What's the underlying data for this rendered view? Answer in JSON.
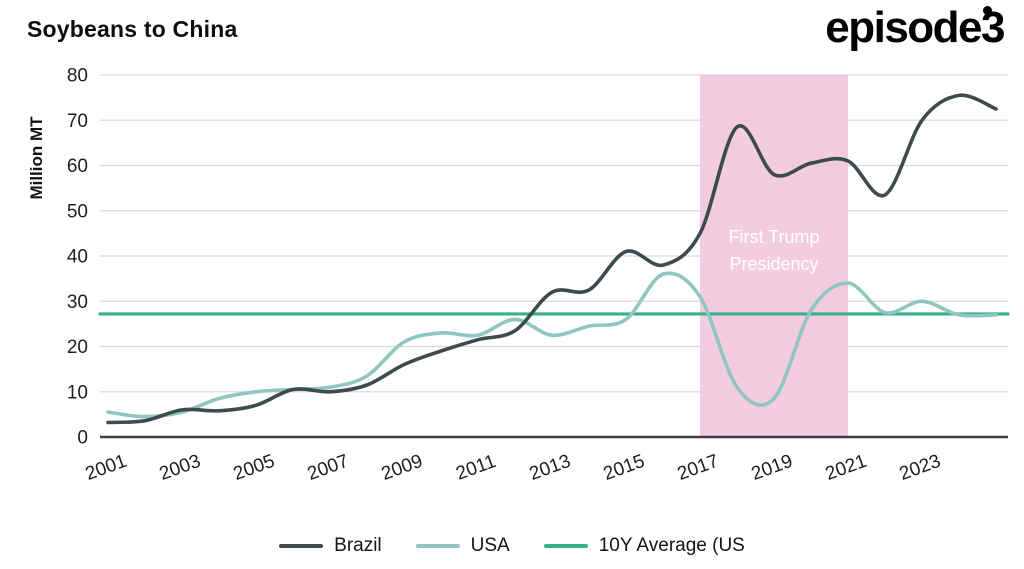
{
  "header": {
    "title": "Soybeans to China",
    "logo_text": "episode3"
  },
  "chart_data": {
    "type": "line",
    "title": "Soybeans to China",
    "xlabel": "",
    "ylabel": "Million MT",
    "ylim": [
      0,
      80
    ],
    "yticks": [
      0,
      10,
      20,
      30,
      40,
      50,
      60,
      70,
      80
    ],
    "xticks": [
      2001,
      2003,
      2005,
      2007,
      2009,
      2011,
      2013,
      2015,
      2017,
      2019,
      2021,
      2023
    ],
    "x": [
      2001,
      2002,
      2003,
      2004,
      2005,
      2006,
      2007,
      2008,
      2009,
      2010,
      2011,
      2012,
      2013,
      2014,
      2015,
      2016,
      2017,
      2018,
      2019,
      2020,
      2021,
      2022,
      2023,
      2024,
      2025
    ],
    "series": [
      {
        "name": "Brazil",
        "color": "#3d4b4d",
        "values": [
          3.2,
          3.6,
          6.0,
          5.8,
          7.0,
          10.5,
          10.0,
          11.5,
          16.0,
          19.0,
          21.5,
          23.5,
          32.0,
          32.5,
          41.0,
          38.0,
          45.0,
          68.5,
          58.0,
          60.5,
          61.0,
          53.5,
          70.0,
          75.5,
          72.5
        ]
      },
      {
        "name": "USA",
        "color": "#90c6c0",
        "values": [
          5.5,
          4.5,
          5.5,
          8.5,
          10.0,
          10.5,
          11.0,
          13.5,
          21.0,
          23.0,
          22.5,
          26.0,
          22.5,
          24.5,
          26.0,
          36.0,
          31.0,
          11.0,
          8.5,
          28.0,
          34.0,
          27.5,
          30.0,
          27.0,
          27.0
        ]
      },
      {
        "name": "10Y Average (US",
        "color": "#36b189",
        "constant": 27.2
      }
    ],
    "highlight_band": {
      "x_from": 2017,
      "x_to": 2021,
      "label_line1": "First Trump",
      "label_line2": "Presidency",
      "color": "#f2c3da",
      "label_color": "#ffffff"
    },
    "grid": true,
    "legend_position": "bottom"
  },
  "colors": {
    "background": "#ffffff",
    "grid": "#d9d9d9",
    "axis": "#3f3f3f",
    "tick_text": "#1f1f1f",
    "ylabel_text": "#111111"
  }
}
